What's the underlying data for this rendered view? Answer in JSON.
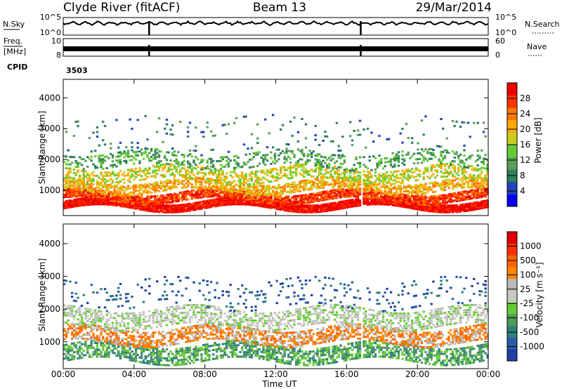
{
  "header": {
    "station": "Clyde River (fitACF)",
    "beam": "Beam 13",
    "date": "29/Mar/2014"
  },
  "chart_data": {
    "type": "heatmap",
    "xlabel": "Time UT",
    "x_ticks": [
      "00:00",
      "04:00",
      "08:00",
      "12:00",
      "16:00",
      "20:00",
      "00:00"
    ],
    "xlim_hours": [
      0,
      24
    ],
    "top_panel": {
      "left_label": "N.Sky",
      "left_ticks": [
        "10^5",
        "10^0"
      ],
      "right_label": "N.Search",
      "right_ticks": [
        "10^5",
        "10^0"
      ]
    },
    "freq_panel": {
      "left_label_1": "Freq.",
      "left_label_2": "[MHz]",
      "left_ticks": [
        "10",
        "8"
      ],
      "right_label": "Nave",
      "right_ticks": [
        "60",
        "0"
      ]
    },
    "cpid": {
      "label": "CPID",
      "value": "3503"
    },
    "power_panel": {
      "ylabel": "Slant Range [km]",
      "y_ticks": [
        "4000",
        "3000",
        "2000",
        "1000"
      ],
      "ylim": [
        180,
        4600
      ],
      "colorbar_label": "Power [dB]",
      "colorbar_ticks": [
        "28",
        "24",
        "20",
        "16",
        "12",
        "8",
        "4"
      ],
      "colors": [
        "#0000ee",
        "#2244bb",
        "#2e7f5a",
        "#5aa05a",
        "#66cc33",
        "#cccc22",
        "#ffaa00",
        "#ff7700",
        "#ff3300",
        "#ee0000"
      ],
      "layers": [
        {
          "range": [
            450,
            700
          ],
          "level": 9,
          "density": 0.9
        },
        {
          "range": [
            700,
            1000
          ],
          "level": 8,
          "density": 0.75
        },
        {
          "range": [
            1000,
            1350
          ],
          "level": 6,
          "density": 0.55
        },
        {
          "range": [
            1350,
            1800
          ],
          "level": 5,
          "density": 0.45
        },
        {
          "range": [
            1800,
            2300
          ],
          "level": 3,
          "density": 0.3
        },
        {
          "range": [
            2300,
            3500
          ],
          "level": 2,
          "density": 0.1
        }
      ]
    },
    "velocity_panel": {
      "ylabel": "Slant Range [km]",
      "y_ticks": [
        "4000",
        "3000",
        "2000",
        "1000"
      ],
      "ylim": [
        180,
        4600
      ],
      "colorbar_label": "Velocity [m s⁻¹]",
      "colorbar_ticks": [
        "1000",
        "500",
        "100",
        "25",
        "-25",
        "-100",
        "-500",
        "-1000"
      ],
      "colors": [
        "#1f3fa0",
        "#2a5aa8",
        "#2e7f7a",
        "#4f9a5a",
        "#66cc33",
        "#c8c8c0",
        "#bbbbbb",
        "#ff8800",
        "#ff6600",
        "#ff3300",
        "#dd0000"
      ],
      "layers": [
        {
          "range": [
            450,
            1000
          ],
          "level": 3,
          "density": 0.6
        },
        {
          "range": [
            1000,
            1500
          ],
          "level": 7,
          "density": 0.6
        },
        {
          "range": [
            1500,
            2100
          ],
          "level": 5,
          "density": 0.55
        },
        {
          "range": [
            2100,
            3000
          ],
          "level": 1,
          "density": 0.15
        }
      ]
    }
  }
}
